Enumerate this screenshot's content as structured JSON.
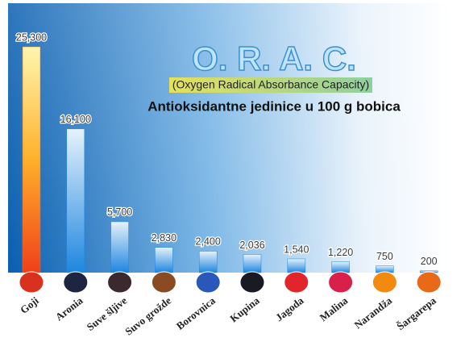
{
  "chart_data": {
    "type": "bar",
    "title": "O. R. A. C.",
    "subtitle": "(Oxygen Radical Absorbance Capacity)",
    "annotation": "Antioksidantne jedinice u 100 g bobica",
    "categories": [
      "Goji",
      "Aronia",
      "Suve šljive",
      "Suvo grožde",
      "Borovnica",
      "Kupina",
      "Jagoda",
      "Malina",
      "Narandža",
      "Šargarepa"
    ],
    "values": [
      25300,
      16100,
      5700,
      2830,
      2400,
      2036,
      1540,
      1220,
      750,
      200
    ],
    "value_labels": [
      "25,300",
      "16,100",
      "5,700",
      "2,830",
      "2,400",
      "2,036",
      "1,540",
      "1,220",
      "750",
      "200"
    ],
    "colors": [
      "#f26a1b",
      "#1e86e0",
      "#1e86e0",
      "#1e86e0",
      "#1e86e0",
      "#1e86e0",
      "#1e86e0",
      "#1e86e0",
      "#1e86e0",
      "#1e86e0"
    ]
  }
}
